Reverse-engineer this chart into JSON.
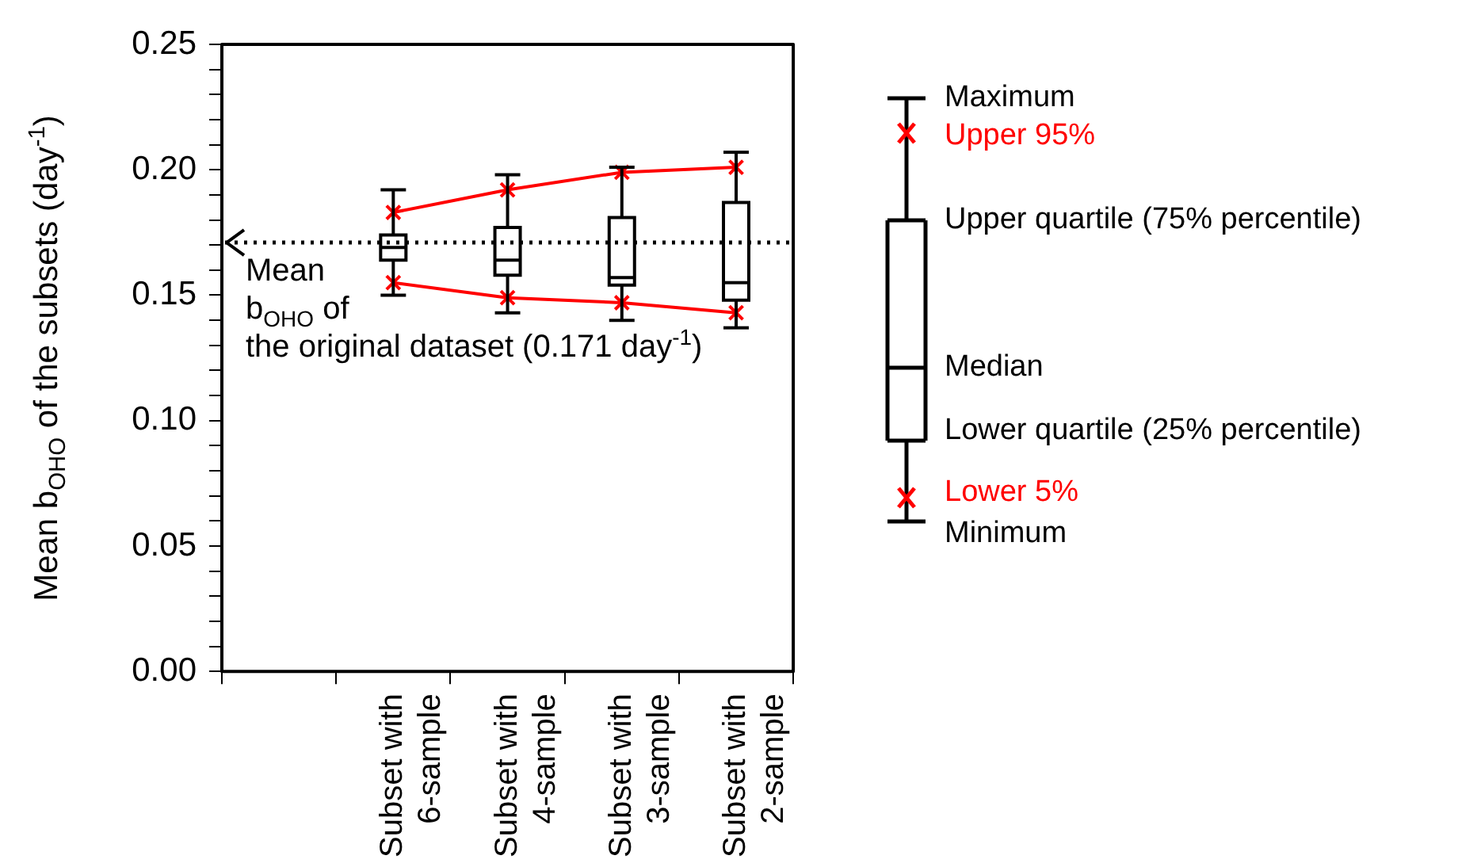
{
  "chart_data": {
    "type": "box",
    "ylabel": "Mean b$_{OHO}$ of the subsets (day$^{-1}$)",
    "categories": [
      null,
      "Subset with\n6-sample",
      "Subset with\n4-sample",
      "Subset with\n3-sample",
      "Subset with\n2-sample"
    ],
    "boxes": [
      null,
      {
        "low": 0.15,
        "q1": 0.164,
        "median": 0.169,
        "q3": 0.174,
        "high": 0.192
      },
      {
        "low": 0.143,
        "q1": 0.158,
        "median": 0.164,
        "q3": 0.177,
        "high": 0.198
      },
      {
        "low": 0.14,
        "q1": 0.154,
        "median": 0.157,
        "q3": 0.181,
        "high": 0.201
      },
      {
        "low": 0.137,
        "q1": 0.148,
        "median": 0.155,
        "q3": 0.187,
        "high": 0.207
      }
    ],
    "series": [
      {
        "name": "Upper 95%",
        "type": "line",
        "color": "#ff0000",
        "values": [
          null,
          0.183,
          0.192,
          0.199,
          0.201
        ]
      },
      {
        "name": "Lower 5%",
        "type": "line",
        "color": "#ff0000",
        "values": [
          null,
          0.155,
          0.149,
          0.147,
          0.143
        ]
      }
    ],
    "marker": "cross",
    "ylim": [
      0,
      0.25
    ],
    "yticks": [
      {
        "value": 0,
        "label": "0.00"
      },
      {
        "value": 0.01,
        "label": null
      },
      {
        "value": 0.02,
        "label": null
      },
      {
        "value": 0.03,
        "label": null
      },
      {
        "value": 0.04,
        "label": null
      },
      {
        "value": 0.05,
        "label": "0.05"
      },
      {
        "value": 0.06,
        "label": null
      },
      {
        "value": 0.07,
        "label": null
      },
      {
        "value": 0.08,
        "label": null
      },
      {
        "value": 0.09,
        "label": null
      },
      {
        "value": 0.1,
        "label": "0.10"
      },
      {
        "value": 0.11,
        "label": null
      },
      {
        "value": 0.12,
        "label": null
      },
      {
        "value": 0.13,
        "label": null
      },
      {
        "value": 0.14,
        "label": null
      },
      {
        "value": 0.15,
        "label": "0.15"
      },
      {
        "value": 0.16,
        "label": null
      },
      {
        "value": 0.17,
        "label": null
      },
      {
        "value": 0.18,
        "label": null
      },
      {
        "value": 0.19,
        "label": null
      },
      {
        "value": 0.2,
        "label": "0.20"
      },
      {
        "value": 0.21,
        "label": null
      },
      {
        "value": 0.22,
        "label": null
      },
      {
        "value": 0.23,
        "label": null
      },
      {
        "value": 0.24,
        "label": null
      },
      {
        "value": 0.25,
        "label": "0.25"
      }
    ],
    "ref_lines": [
      {
        "axis": "y",
        "value": 0.171,
        "label": "Mean\nb$_{OHO}$ of\nthe original dataset (0.171 day$^{-1}$)",
        "line_style": "dotted",
        "color": "#000000"
      }
    ],
    "annotations": [
      "Maximum",
      "Upper quartile (75% percentile)",
      "Median",
      "Lower quartile (25% percentile)",
      "Minimum"
    ],
    "legend": "right",
    "grid": false
  }
}
